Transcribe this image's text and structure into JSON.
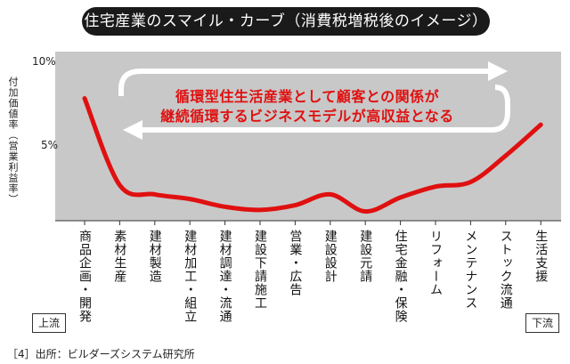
{
  "title": "住宅産業のスマイル・カーブ（消費税増税後のイメージ）",
  "banner": {
    "line1": "循環型住生活産業として顧客との関係が",
    "line2": "継続循環するビジネスモデルが高収益となる"
  },
  "colors": {
    "curve": "#e01010",
    "plot_bg": "#c8c8c8",
    "title_bg": "#1a1a1a"
  },
  "flow": {
    "start": "上流",
    "end": "下流"
  },
  "source": "［4］出所：ビルダーズシステム研究所",
  "chart_data": {
    "type": "line",
    "ylabel": "付加価値率（営業利益率）",
    "ylim": [
      0,
      10
    ],
    "yticks": [
      {
        "value": 10,
        "label": "10%"
      },
      {
        "value": 5,
        "label": "5%"
      }
    ],
    "categories": [
      "商品企画・開発",
      "素材生産",
      "建材製造",
      "建材加工・組立",
      "建材調達・流通",
      "建設下請施工",
      "営業・広告",
      "建設設計",
      "建設元請",
      "住宅金融・保険",
      "リフォーム",
      "メンテナンス",
      "ストック流通",
      "生活支援"
    ],
    "series": [
      {
        "values": [
          7.9,
          2.3,
          1.7,
          1.4,
          0.9,
          0.7,
          1.0,
          1.7,
          0.6,
          1.5,
          2.2,
          2.5,
          4.2,
          6.2
        ]
      }
    ]
  }
}
